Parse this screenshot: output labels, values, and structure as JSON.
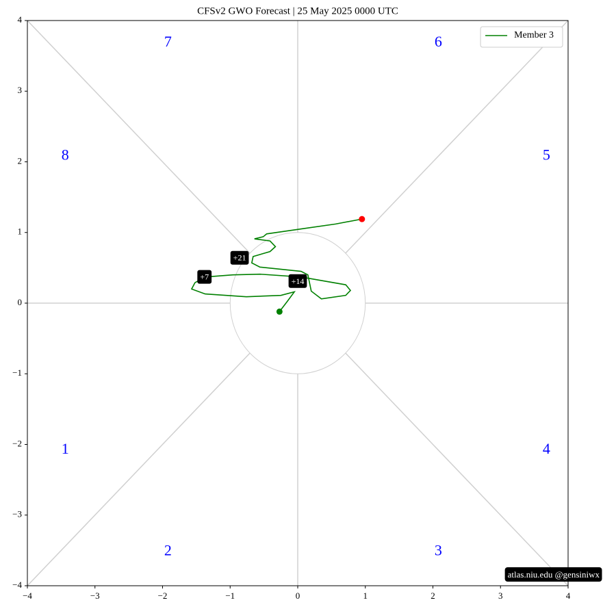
{
  "chart_data": {
    "type": "line",
    "title": "CFSv2 GWO Forecast   |   25  May  2025 0000 UTC",
    "series": [
      {
        "name": "Member 3",
        "color": "#008000",
        "x": [
          -0.27,
          -0.15,
          -0.05,
          -0.25,
          -0.76,
          -1.37,
          -1.57,
          -1.52,
          -1.37,
          -0.96,
          -0.56,
          0.05,
          0.71,
          0.78,
          0.71,
          0.35,
          0.2,
          0.15,
          0.05,
          -0.56,
          -0.68,
          -0.66,
          -0.41,
          -0.33,
          -0.41,
          -0.64,
          -0.51,
          -0.46,
          0.05,
          0.56,
          0.95
        ],
        "y": [
          -0.12,
          0.03,
          0.16,
          0.11,
          0.09,
          0.13,
          0.2,
          0.29,
          0.37,
          0.4,
          0.41,
          0.37,
          0.26,
          0.18,
          0.11,
          0.06,
          0.17,
          0.4,
          0.45,
          0.51,
          0.57,
          0.66,
          0.73,
          0.8,
          0.88,
          0.91,
          0.94,
          0.98,
          1.05,
          1.12,
          1.19
        ]
      }
    ],
    "start_color": "#008000",
    "end_color": "#ff0000",
    "annotations": [
      {
        "text": "+7",
        "x": -1.38,
        "y": 0.36
      },
      {
        "text": "+14",
        "x": 0.0,
        "y": 0.3
      },
      {
        "text": "+21",
        "x": -0.86,
        "y": 0.63
      }
    ],
    "phase_labels": [
      "1",
      "2",
      "3",
      "4",
      "5",
      "6",
      "7",
      "8"
    ],
    "phase_color": "#0000ff",
    "xlim": [
      -4,
      4
    ],
    "ylim": [
      -4,
      4
    ],
    "xticks": [
      {
        "value": -4,
        "label": "−4"
      },
      {
        "value": -3,
        "label": "−3"
      },
      {
        "value": -2,
        "label": "−2"
      },
      {
        "value": -1,
        "label": "−1"
      },
      0,
      1,
      2,
      3,
      4
    ],
    "yticks": [
      {
        "value": -4,
        "label": "−4"
      },
      {
        "value": -3,
        "label": "−3"
      },
      {
        "value": -2,
        "label": "−2"
      },
      {
        "value": -1,
        "label": "−1"
      },
      0,
      1,
      2,
      3,
      4
    ],
    "legend": "upper right",
    "watermark": "atlas.niu.edu  @gensiniwx"
  }
}
